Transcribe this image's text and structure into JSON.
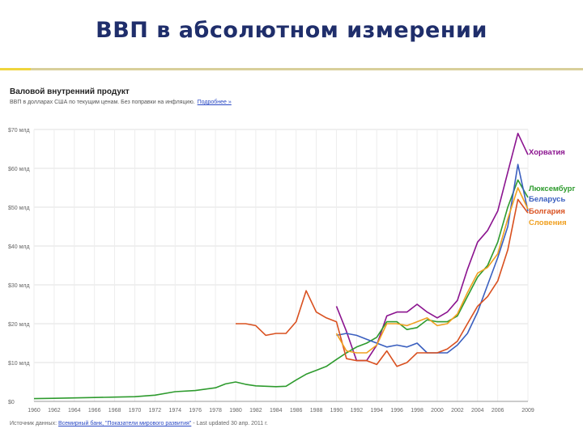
{
  "slide": {
    "title": "ВВП в абсолютном измерении"
  },
  "chart_data": {
    "type": "line",
    "title": "Валовой внутренний продукт",
    "subtitle": "ВВП в долларах США по текущим ценам. Без поправки на инфляцию.",
    "subtitle_link": "Подробнее »",
    "ylim": [
      0,
      70
    ],
    "y_ticks": [
      {
        "value": 0,
        "label": "$0"
      },
      {
        "value": 10,
        "label": "$10 млд"
      },
      {
        "value": 20,
        "label": "$20 млд"
      },
      {
        "value": 30,
        "label": "$30 млд"
      },
      {
        "value": 40,
        "label": "$40 млд"
      },
      {
        "value": 50,
        "label": "$50 млд"
      },
      {
        "value": 60,
        "label": "$60 млд"
      },
      {
        "value": 70,
        "label": "$70 млд"
      }
    ],
    "xlim": [
      1960,
      2009
    ],
    "x_ticks": [
      1960,
      1962,
      1964,
      1966,
      1968,
      1970,
      1972,
      1974,
      1976,
      1978,
      1980,
      1982,
      1984,
      1986,
      1988,
      1990,
      1992,
      1994,
      1996,
      1998,
      2000,
      2002,
      2004,
      2006,
      2009
    ],
    "grid": true,
    "legend_position": "right",
    "series": [
      {
        "name": "Хорватия",
        "color": "#8b138f",
        "points": [
          [
            1990,
            24.5
          ],
          [
            1991,
            18
          ],
          [
            1992,
            10.5
          ],
          [
            1993,
            10.5
          ],
          [
            1994,
            14.5
          ],
          [
            1995,
            22
          ],
          [
            1996,
            23
          ],
          [
            1997,
            23
          ],
          [
            1998,
            25
          ],
          [
            1999,
            23
          ],
          [
            2000,
            21.5
          ],
          [
            2001,
            23
          ],
          [
            2002,
            26
          ],
          [
            2003,
            34
          ],
          [
            2004,
            41
          ],
          [
            2005,
            44
          ],
          [
            2006,
            49
          ],
          [
            2007,
            59
          ],
          [
            2008,
            69
          ],
          [
            2009,
            63.5
          ]
        ]
      },
      {
        "name": "Люксембург",
        "color": "#2e9b2e",
        "points": [
          [
            1960,
            0.7
          ],
          [
            1962,
            0.8
          ],
          [
            1964,
            0.9
          ],
          [
            1966,
            1.0
          ],
          [
            1968,
            1.1
          ],
          [
            1970,
            1.2
          ],
          [
            1972,
            1.6
          ],
          [
            1974,
            2.5
          ],
          [
            1976,
            2.8
          ],
          [
            1978,
            3.5
          ],
          [
            1979,
            4.5
          ],
          [
            1980,
            5.0
          ],
          [
            1981,
            4.4
          ],
          [
            1982,
            4.0
          ],
          [
            1983,
            3.9
          ],
          [
            1984,
            3.8
          ],
          [
            1985,
            3.9
          ],
          [
            1986,
            5.5
          ],
          [
            1987,
            7.0
          ],
          [
            1988,
            8.0
          ],
          [
            1989,
            9.0
          ],
          [
            1990,
            10.8
          ],
          [
            1991,
            12.5
          ],
          [
            1992,
            14
          ],
          [
            1993,
            15
          ],
          [
            1994,
            16.5
          ],
          [
            1995,
            20.5
          ],
          [
            1996,
            20.5
          ],
          [
            1997,
            18.5
          ],
          [
            1998,
            19
          ],
          [
            1999,
            21
          ],
          [
            2000,
            20.5
          ],
          [
            2001,
            20.5
          ],
          [
            2002,
            22
          ],
          [
            2003,
            27
          ],
          [
            2004,
            32
          ],
          [
            2005,
            35
          ],
          [
            2006,
            41
          ],
          [
            2007,
            50
          ],
          [
            2008,
            57
          ],
          [
            2009,
            52.5
          ]
        ]
      },
      {
        "name": "Беларусь",
        "color": "#3a5fbf",
        "points": [
          [
            1990,
            17
          ],
          [
            1991,
            17.5
          ],
          [
            1992,
            17
          ],
          [
            1993,
            16
          ],
          [
            1994,
            15
          ],
          [
            1995,
            14
          ],
          [
            1996,
            14.5
          ],
          [
            1997,
            14
          ],
          [
            1998,
            15
          ],
          [
            1999,
            12.5
          ],
          [
            2000,
            12.5
          ],
          [
            2001,
            12.5
          ],
          [
            2002,
            14.5
          ],
          [
            2003,
            17.5
          ],
          [
            2004,
            23
          ],
          [
            2005,
            30
          ],
          [
            2006,
            37
          ],
          [
            2007,
            45
          ],
          [
            2008,
            61
          ],
          [
            2009,
            49
          ]
        ]
      },
      {
        "name": "Болгария",
        "color": "#d9501f",
        "points": [
          [
            1980,
            20
          ],
          [
            1981,
            20
          ],
          [
            1982,
            19.5
          ],
          [
            1983,
            17
          ],
          [
            1984,
            17.5
          ],
          [
            1985,
            17.5
          ],
          [
            1986,
            20.5
          ],
          [
            1987,
            28.5
          ],
          [
            1988,
            23
          ],
          [
            1989,
            21.5
          ],
          [
            1990,
            20.5
          ],
          [
            1991,
            11
          ],
          [
            1992,
            10.5
          ],
          [
            1993,
            10.5
          ],
          [
            1994,
            9.5
          ],
          [
            1995,
            13
          ],
          [
            1996,
            9
          ],
          [
            1997,
            10
          ],
          [
            1998,
            12.5
          ],
          [
            1999,
            12.5
          ],
          [
            2000,
            12.5
          ],
          [
            2001,
            13.5
          ],
          [
            2002,
            15.5
          ],
          [
            2003,
            20
          ],
          [
            2004,
            24.5
          ],
          [
            2005,
            27
          ],
          [
            2006,
            31
          ],
          [
            2007,
            39
          ],
          [
            2008,
            52
          ],
          [
            2009,
            48.5
          ]
        ]
      },
      {
        "name": "Словения",
        "color": "#f0a020",
        "points": [
          [
            1990,
            17.5
          ],
          [
            1991,
            13
          ],
          [
            1992,
            12.5
          ],
          [
            1993,
            12.5
          ],
          [
            1994,
            14.5
          ],
          [
            1995,
            20
          ],
          [
            1996,
            20
          ],
          [
            1997,
            19.5
          ],
          [
            1998,
            20.5
          ],
          [
            1999,
            21.5
          ],
          [
            2000,
            19.5
          ],
          [
            2001,
            20
          ],
          [
            2002,
            22.5
          ],
          [
            2003,
            28
          ],
          [
            2004,
            33
          ],
          [
            2005,
            34.5
          ],
          [
            2006,
            38
          ],
          [
            2007,
            47
          ],
          [
            2008,
            55
          ],
          [
            2009,
            49.5
          ]
        ]
      }
    ]
  },
  "source": {
    "prefix": "Источник данных:",
    "link": "Всемирный банк, \"Показатели мирового развития\"",
    "suffix": "- Last updated 30 апр. 2011 г."
  }
}
